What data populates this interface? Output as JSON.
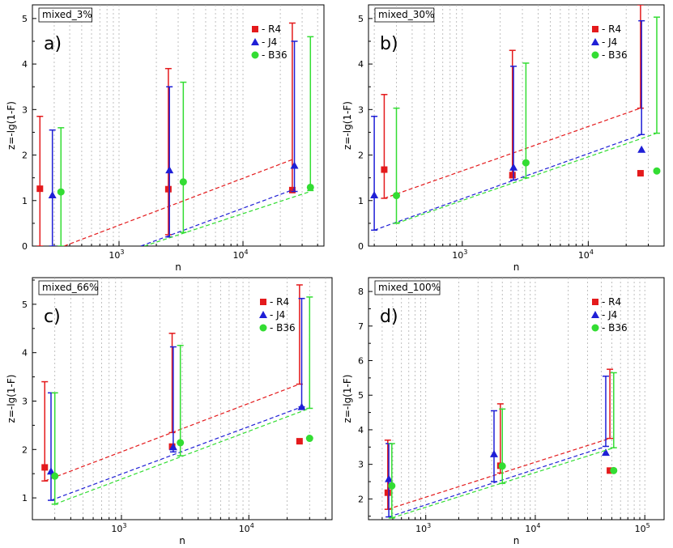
{
  "chart_data": [
    {
      "panel": "a)",
      "title": "mixed_3%",
      "type": "scatter",
      "xscale": "log",
      "xlabel": "n",
      "ylabel": "z=-lg(1-F)",
      "xlim": [
        200,
        45000
      ],
      "ylim": [
        0,
        5.3
      ],
      "xticks": [
        {
          "v": 1000,
          "b": "10",
          "e": "3"
        },
        {
          "v": 10000,
          "b": "10",
          "e": "4"
        }
      ],
      "yticks": [
        0,
        1,
        2,
        3,
        4,
        5
      ],
      "legend": [
        "- R4",
        "- J4",
        "- B36"
      ],
      "series": [
        {
          "name": "R4",
          "color": "#e41a1c",
          "marker": "square",
          "points": [
            {
              "x": 230,
              "y": 1.26,
              "lo": 0,
              "hi": 2.85
            },
            {
              "x": 2500,
              "y": 1.25,
              "lo": 0.25,
              "hi": 3.9
            },
            {
              "x": 25000,
              "y": 1.23,
              "lo": 1.23,
              "hi": 4.9
            }
          ],
          "trend": [
            [
              360,
              0
            ],
            [
              25000,
              1.9
            ]
          ]
        },
        {
          "name": "J4",
          "color": "#1f1fd6",
          "marker": "triangle",
          "points": [
            {
              "x": 290,
              "y": 1.12,
              "lo": 0,
              "hi": 2.55
            },
            {
              "x": 2550,
              "y": 1.67,
              "lo": 0.2,
              "hi": 3.5
            },
            {
              "x": 26000,
              "y": 1.77,
              "lo": 1.2,
              "hi": 4.5
            }
          ],
          "trend": [
            [
              1500,
              0
            ],
            [
              26000,
              1.25
            ]
          ]
        },
        {
          "name": "B36",
          "color": "#33dd33",
          "marker": "circle",
          "points": [
            {
              "x": 340,
              "y": 1.19,
              "lo": 0,
              "hi": 2.6
            },
            {
              "x": 3300,
              "y": 1.41,
              "lo": 0.3,
              "hi": 3.6
            },
            {
              "x": 35000,
              "y": 1.29,
              "lo": 1.22,
              "hi": 4.6
            }
          ],
          "trend": [
            [
              1600,
              0
            ],
            [
              35000,
              1.2
            ]
          ]
        }
      ]
    },
    {
      "panel": "b)",
      "title": "mixed_30%",
      "type": "scatter",
      "xscale": "log",
      "xlabel": "n",
      "ylabel": "z=-lg(1-F)",
      "xlim": [
        180,
        40000
      ],
      "ylim": [
        0,
        5.3
      ],
      "xticks": [
        {
          "v": 1000,
          "b": "10",
          "e": "3"
        },
        {
          "v": 10000,
          "b": "10",
          "e": "4"
        }
      ],
      "yticks": [
        0,
        1,
        2,
        3,
        4,
        5
      ],
      "legend": [
        "- R4",
        "- J4",
        "- B36"
      ],
      "series": [
        {
          "name": "R4",
          "color": "#e41a1c",
          "marker": "square",
          "points": [
            {
              "x": 240,
              "y": 1.68,
              "lo": 1.05,
              "hi": 3.33
            },
            {
              "x": 2500,
              "y": 1.56,
              "lo": 1.5,
              "hi": 4.3
            },
            {
              "x": 26000,
              "y": 1.6,
              "lo": 3.03,
              "hi": 5.3
            }
          ],
          "trend": [
            [
              240,
              1.05
            ],
            [
              26000,
              3.03
            ]
          ]
        },
        {
          "name": "J4",
          "color": "#1f1fd6",
          "marker": "triangle",
          "points": [
            {
              "x": 200,
              "y": 1.12,
              "lo": 0.35,
              "hi": 2.85
            },
            {
              "x": 2550,
              "y": 1.73,
              "lo": 1.45,
              "hi": 3.95
            },
            {
              "x": 26500,
              "y": 2.12,
              "lo": 2.45,
              "hi": 4.95
            }
          ],
          "trend": [
            [
              200,
              0.35
            ],
            [
              26500,
              2.45
            ]
          ]
        },
        {
          "name": "B36",
          "color": "#33dd33",
          "marker": "circle",
          "points": [
            {
              "x": 300,
              "y": 1.11,
              "lo": 0.5,
              "hi": 3.03
            },
            {
              "x": 3200,
              "y": 1.83,
              "lo": 1.5,
              "hi": 4.02
            },
            {
              "x": 35000,
              "y": 1.65,
              "lo": 2.48,
              "hi": 5.03
            }
          ],
          "trend": [
            [
              300,
              0.5
            ],
            [
              35000,
              2.48
            ]
          ]
        }
      ]
    },
    {
      "panel": "c)",
      "title": "mixed_66%",
      "type": "scatter",
      "xscale": "log",
      "xlabel": "n",
      "ylabel": "z=-lg(1-F)",
      "xlim": [
        200,
        45000
      ],
      "ylim": [
        0.55,
        5.55
      ],
      "xticks": [
        {
          "v": 1000,
          "b": "10",
          "e": "3"
        },
        {
          "v": 10000,
          "b": "10",
          "e": "4"
        }
      ],
      "yticks": [
        1,
        2,
        3,
        4,
        5
      ],
      "legend": [
        "- R4",
        "- J4",
        "- B36"
      ],
      "series": [
        {
          "name": "R4",
          "color": "#e41a1c",
          "marker": "square",
          "points": [
            {
              "x": 250,
              "y": 1.63,
              "lo": 1.35,
              "hi": 3.4
            },
            {
              "x": 2500,
              "y": 2.06,
              "lo": 2.35,
              "hi": 4.4
            },
            {
              "x": 25000,
              "y": 2.17,
              "lo": 3.35,
              "hi": 5.4
            }
          ],
          "trend": [
            [
              250,
              1.35
            ],
            [
              25000,
              3.35
            ]
          ]
        },
        {
          "name": "J4",
          "color": "#1f1fd6",
          "marker": "triangle",
          "points": [
            {
              "x": 280,
              "y": 1.55,
              "lo": 0.95,
              "hi": 3.17
            },
            {
              "x": 2550,
              "y": 2.05,
              "lo": 1.95,
              "hi": 4.12
            },
            {
              "x": 26000,
              "y": 2.88,
              "lo": 2.88,
              "hi": 5.12
            }
          ],
          "trend": [
            [
              280,
              0.95
            ],
            [
              26000,
              2.88
            ]
          ]
        },
        {
          "name": "B36",
          "color": "#33dd33",
          "marker": "circle",
          "points": [
            {
              "x": 300,
              "y": 1.45,
              "lo": 0.87,
              "hi": 3.17
            },
            {
              "x": 2900,
              "y": 2.14,
              "lo": 1.87,
              "hi": 4.15
            },
            {
              "x": 30000,
              "y": 2.23,
              "lo": 2.85,
              "hi": 5.15
            }
          ],
          "trend": [
            [
              300,
              0.87
            ],
            [
              30000,
              2.85
            ]
          ]
        }
      ]
    },
    {
      "panel": "d)",
      "title": "mixed_100%",
      "type": "scatter",
      "xscale": "log",
      "xlabel": "n",
      "ylabel": "z=-lg(1-F)",
      "xlim": [
        300,
        150000
      ],
      "ylim": [
        1.4,
        8.4
      ],
      "xticks": [
        {
          "v": 1000,
          "b": "10",
          "e": "3"
        },
        {
          "v": 10000,
          "b": "10",
          "e": "4"
        },
        {
          "v": 100000,
          "b": "10",
          "e": "5"
        }
      ],
      "yticks": [
        2,
        3,
        4,
        5,
        6,
        7,
        8
      ],
      "legend": [
        "- R4",
        "- J4",
        "- B36"
      ],
      "series": [
        {
          "name": "R4",
          "color": "#e41a1c",
          "marker": "square",
          "points": [
            {
              "x": 450,
              "y": 2.18,
              "lo": 1.7,
              "hi": 3.7
            },
            {
              "x": 4800,
              "y": 2.96,
              "lo": 2.75,
              "hi": 4.75
            },
            {
              "x": 48000,
              "y": 2.82,
              "lo": 3.75,
              "hi": 5.75
            }
          ],
          "trend": [
            [
              450,
              1.7
            ],
            [
              48000,
              3.75
            ]
          ]
        },
        {
          "name": "J4",
          "color": "#1f1fd6",
          "marker": "triangle",
          "points": [
            {
              "x": 460,
              "y": 2.58,
              "lo": 1.48,
              "hi": 3.6
            },
            {
              "x": 4200,
              "y": 3.3,
              "lo": 2.5,
              "hi": 4.55
            },
            {
              "x": 44000,
              "y": 3.34,
              "lo": 3.52,
              "hi": 5.55
            }
          ],
          "trend": [
            [
              460,
              1.48
            ],
            [
              44000,
              3.52
            ]
          ]
        },
        {
          "name": "B36",
          "color": "#33dd33",
          "marker": "circle",
          "points": [
            {
              "x": 490,
              "y": 2.38,
              "lo": 1.45,
              "hi": 3.6
            },
            {
              "x": 5000,
              "y": 2.95,
              "lo": 2.45,
              "hi": 4.6
            },
            {
              "x": 52000,
              "y": 2.82,
              "lo": 3.48,
              "hi": 5.65
            }
          ],
          "trend": [
            [
              490,
              1.45
            ],
            [
              52000,
              3.48
            ]
          ]
        }
      ]
    }
  ]
}
